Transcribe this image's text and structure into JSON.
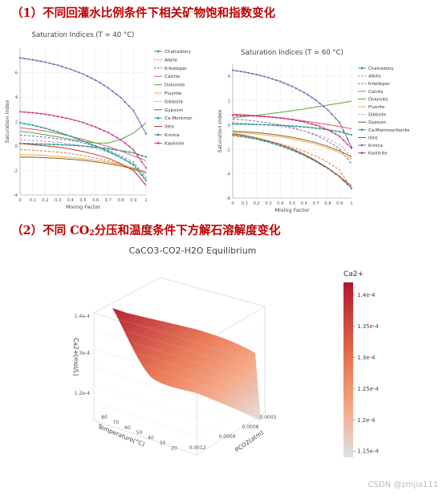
{
  "headings": {
    "section1": "（1）不同回灌水比例条件下相关矿物饱和指数变化",
    "section2_pre": "（2）不同 CO",
    "section2_sub": "2",
    "section2_post": "分压和温度条件下方解石溶解度变化"
  },
  "watermark": "CSDN @zmjia111",
  "chart_data": [
    {
      "type": "line",
      "title": "Saturation Indices (T = 40 °C)",
      "xlabel": "Mixing Factor",
      "ylabel": "Saturation Index",
      "xlim": [
        0,
        1
      ],
      "ylim": [
        -4,
        8
      ],
      "xticks": [
        "0",
        "0.1",
        "0.2",
        "0.3",
        "0.4",
        "0.5",
        "0.6",
        "0.7",
        "0.8",
        "0.9",
        "1"
      ],
      "yticks": [
        "-4",
        "-2",
        "0",
        "2",
        "4",
        "6"
      ],
      "grid": true,
      "legend": "right",
      "x": [
        0,
        0.1,
        0.2,
        0.3,
        0.4,
        0.5,
        0.6,
        0.7,
        0.8,
        0.9,
        1.0
      ],
      "series": [
        {
          "name": "Chalcedony",
          "color": "#2a9d8f",
          "dash": "solid",
          "marker": true,
          "values": [
            0.2,
            0.18,
            0.15,
            0.12,
            0.07,
            0.0,
            -0.1,
            -0.22,
            -0.38,
            -0.55,
            -0.9
          ]
        },
        {
          "name": "Albite",
          "color": "#e07b39",
          "dash": "dash",
          "values": [
            -0.3,
            -0.35,
            -0.42,
            -0.5,
            -0.62,
            -0.78,
            -0.98,
            -1.2,
            -1.5,
            -1.9,
            -3.3
          ]
        },
        {
          "name": "K-feldspar",
          "color": "#6a6fb4",
          "dash": "dash",
          "values": [
            0.9,
            0.82,
            0.72,
            0.6,
            0.45,
            0.25,
            0.0,
            -0.35,
            -0.8,
            -1.3,
            -2.6
          ]
        },
        {
          "name": "Calcite",
          "color": "#e05a6a",
          "dash": "solid",
          "values": [
            1.5,
            1.38,
            1.22,
            1.02,
            0.8,
            0.55,
            0.25,
            -0.05,
            -0.4,
            -0.8,
            -1.2
          ]
        },
        {
          "name": "Dolomite",
          "color": "#5aa33a",
          "dash": "solid",
          "values": [
            1.2,
            1.08,
            0.92,
            0.75,
            0.55,
            0.38,
            0.25,
            0.25,
            0.55,
            1.05,
            1.9
          ]
        },
        {
          "name": "Fluorite",
          "color": "#e8b33a",
          "dash": "solid",
          "values": [
            -0.7,
            -0.73,
            -0.78,
            -0.85,
            -0.93,
            -1.03,
            -1.16,
            -1.32,
            -1.52,
            -1.78,
            -2.1
          ]
        },
        {
          "name": "Gibbsite",
          "color": "#b19bd6",
          "dash": "dash",
          "values": [
            0.5,
            0.45,
            0.38,
            0.3,
            0.18,
            0.02,
            -0.2,
            -0.5,
            -0.95,
            -1.6,
            -2.9
          ]
        },
        {
          "name": "Gypsum",
          "color": "#8c5a2b",
          "dash": "solid",
          "values": [
            -0.9,
            -0.92,
            -0.96,
            -1.01,
            -1.08,
            -1.17,
            -1.29,
            -1.44,
            -1.63,
            -1.87,
            -2.2
          ]
        },
        {
          "name": "Ca-Montmorillonite",
          "color": "#2a9d8f",
          "dash": "solid",
          "marker": true,
          "values": [
            1.9,
            1.7,
            1.45,
            1.15,
            0.8,
            0.4,
            0.0,
            -0.45,
            -0.95,
            -1.5,
            -2.8
          ]
        },
        {
          "name": "Illite",
          "color": "#c0392b",
          "dash": "solid",
          "values": [
            0.2,
            0.12,
            0.02,
            -0.1,
            -0.25,
            -0.45,
            -0.7,
            -1.0,
            -1.45,
            -2.0,
            -3.2
          ]
        },
        {
          "name": "K-mica",
          "color": "#6a6fb4",
          "dash": "solid",
          "marker": true,
          "values": [
            7.2,
            7.05,
            6.85,
            6.6,
            6.28,
            5.88,
            5.38,
            4.75,
            3.95,
            2.9,
            1.0
          ]
        },
        {
          "name": "Kaolinite",
          "color": "#d63384",
          "dash": "solid",
          "marker": true,
          "values": [
            2.8,
            2.72,
            2.6,
            2.42,
            2.2,
            1.92,
            1.55,
            1.1,
            0.5,
            -0.3,
            -1.8
          ]
        }
      ]
    },
    {
      "type": "line",
      "title": "Saturation Indices (T = 60 °C)",
      "xlabel": "Mixing Factor",
      "ylabel": "Saturation Index",
      "xlim": [
        0,
        1
      ],
      "ylim": [
        -6,
        5
      ],
      "xticks": [
        "0",
        "0.1",
        "0.2",
        "0.3",
        "0.4",
        "0.5",
        "0.6",
        "0.7",
        "0.8",
        "0.9",
        "1"
      ],
      "yticks": [
        "-6",
        "-4",
        "-2",
        "0",
        "2",
        "4"
      ],
      "grid": true,
      "legend": "right",
      "x": [
        0,
        0.1,
        0.2,
        0.3,
        0.4,
        0.5,
        0.6,
        0.7,
        0.8,
        0.9,
        1.0
      ],
      "series": [
        {
          "name": "Chalcedony",
          "color": "#2a9d8f",
          "dash": "solid",
          "marker": true,
          "values": [
            0.1,
            0.08,
            0.05,
            0.02,
            -0.02,
            -0.08,
            -0.15,
            -0.25,
            -0.38,
            -0.55,
            -0.8
          ]
        },
        {
          "name": "Albite",
          "color": "#e07b39",
          "dash": "dash",
          "values": [
            -0.9,
            -1.0,
            -1.15,
            -1.32,
            -1.55,
            -1.82,
            -2.15,
            -2.55,
            -3.05,
            -3.7,
            -5.2
          ]
        },
        {
          "name": "K-feldspar",
          "color": "#6a6fb4",
          "dash": "dash",
          "values": [
            0.5,
            0.42,
            0.32,
            0.2,
            0.02,
            -0.2,
            -0.48,
            -0.85,
            -1.32,
            -1.95,
            -3.2
          ]
        },
        {
          "name": "Calcite",
          "color": "#e05a6a",
          "dash": "solid",
          "values": [
            0.9,
            0.85,
            0.78,
            0.7,
            0.6,
            0.48,
            0.34,
            0.2,
            0.05,
            -0.12,
            -0.3
          ]
        },
        {
          "name": "Dolomite",
          "color": "#5aa33a",
          "dash": "solid",
          "values": [
            0.6,
            0.7,
            0.8,
            0.92,
            1.05,
            1.18,
            1.32,
            1.48,
            1.64,
            1.8,
            1.95
          ]
        },
        {
          "name": "Fluorite",
          "color": "#e8b33a",
          "dash": "solid",
          "values": [
            -0.6,
            -0.66,
            -0.74,
            -0.84,
            -0.97,
            -1.13,
            -1.33,
            -1.57,
            -1.88,
            -2.27,
            -2.8
          ]
        },
        {
          "name": "Gibbsite",
          "color": "#b19bd6",
          "dash": "dash",
          "values": [
            0.2,
            0.15,
            0.08,
            0.0,
            -0.12,
            -0.28,
            -0.48,
            -0.75,
            -1.1,
            -1.6,
            -2.6
          ]
        },
        {
          "name": "Gypsum",
          "color": "#8c5a2b",
          "dash": "solid",
          "values": [
            -0.5,
            -0.55,
            -0.62,
            -0.72,
            -0.85,
            -1.0,
            -1.2,
            -1.44,
            -1.74,
            -2.12,
            -2.6
          ]
        },
        {
          "name": "Ca-Montmorillonite",
          "color": "#2a9d8f",
          "dash": "solid",
          "marker": true,
          "values": [
            -0.8,
            -0.95,
            -1.15,
            -1.4,
            -1.7,
            -2.05,
            -2.48,
            -2.98,
            -3.55,
            -4.25,
            -5.2
          ]
        },
        {
          "name": "Illite",
          "color": "#c0392b",
          "dash": "solid",
          "values": [
            -0.7,
            -0.85,
            -1.05,
            -1.3,
            -1.6,
            -1.95,
            -2.4,
            -2.92,
            -3.52,
            -4.22,
            -5.0
          ]
        },
        {
          "name": "K-mica",
          "color": "#6a6fb4",
          "dash": "solid",
          "marker": true,
          "values": [
            4.5,
            4.35,
            4.15,
            3.9,
            3.58,
            3.18,
            2.68,
            2.05,
            1.25,
            0.2,
            -1.8
          ]
        },
        {
          "name": "Kaolinite",
          "color": "#d63384",
          "dash": "solid",
          "marker": true,
          "values": [
            0.8,
            0.78,
            0.74,
            0.68,
            0.58,
            0.45,
            0.26,
            0.0,
            -0.38,
            -0.92,
            -1.9
          ]
        }
      ]
    },
    {
      "type": "surface",
      "title": "CaCO3-CO2-H2O Equilibrium",
      "xlabel": "PCO2(atm)",
      "ylabel": "Temperature(°C)",
      "zlabel": "Ca2+(mol/L)",
      "xticks": [
        "0.0003",
        "0.0006",
        "0.0009",
        "0.0012"
      ],
      "yticks": [
        "20",
        "30",
        "40",
        "50",
        "60",
        "70",
        "80"
      ],
      "zticks": [
        "1.2e-4",
        "1.3e-4",
        "1.4e-4"
      ],
      "colorbar": {
        "title": "Ca2+",
        "ticks": [
          "1.4e-4",
          "1.35e-4",
          "1.3e-4",
          "1.25e-4",
          "1.2e-4",
          "1.15e-4"
        ],
        "range": [
          0.000114,
          0.000142
        ],
        "color_high": "#b2182b",
        "color_mid": "#f4a582",
        "color_low": "#e0e0e0"
      }
    }
  ]
}
